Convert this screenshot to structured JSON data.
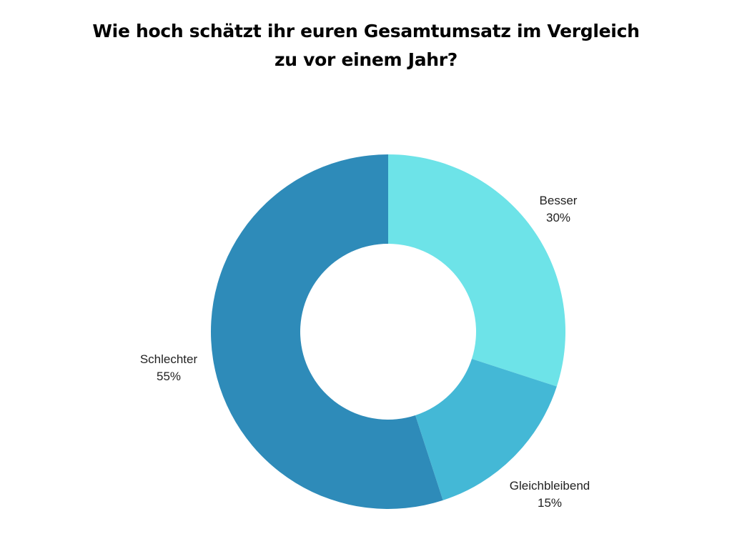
{
  "chart_data": {
    "type": "pie",
    "variant": "donut",
    "title": "Wie hoch schätzt ihr euren Gesamtumsatz im Vergleich zu vor einem Jahr?",
    "slices": [
      {
        "label": "Besser",
        "value": 30,
        "value_label": "30%",
        "color": "#6de3e8"
      },
      {
        "label": "Gleichbleibend",
        "value": 15,
        "value_label": "15%",
        "color": "#44b8d6"
      },
      {
        "label": "Schlechter",
        "value": 55,
        "value_label": "55%",
        "color": "#2e8bb9"
      }
    ],
    "legend": "none",
    "start": "top",
    "direction": "clockwise"
  }
}
